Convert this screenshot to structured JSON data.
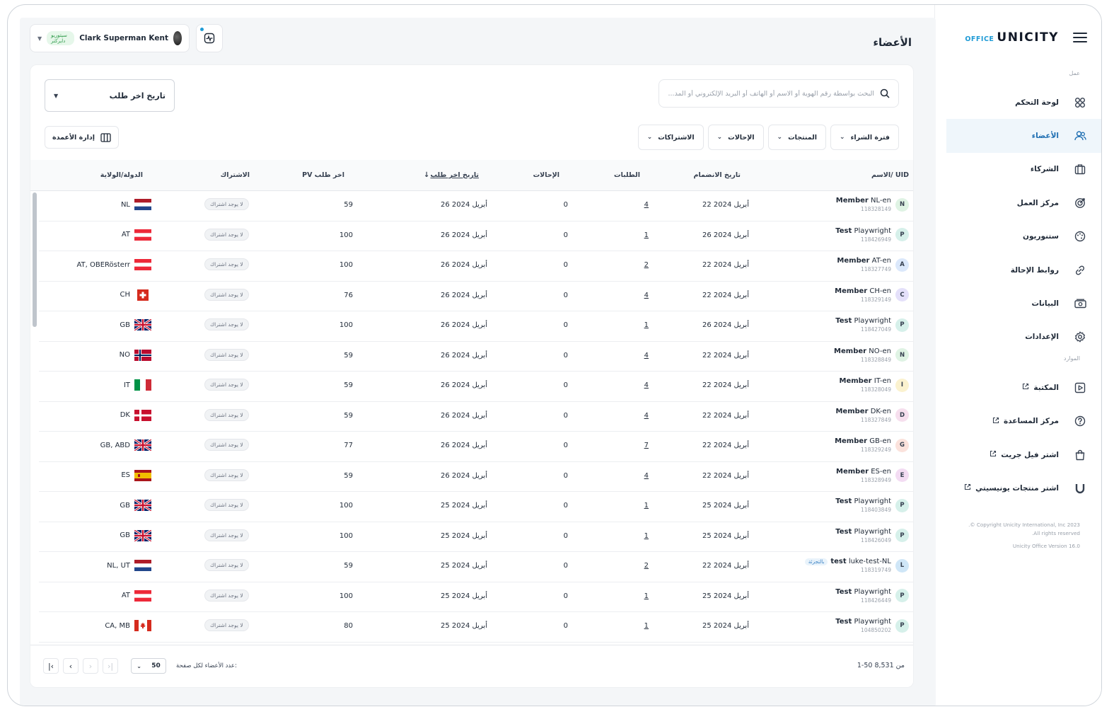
{
  "app": {
    "logo_office": "OFFICE",
    "logo_brand": "UNICITY"
  },
  "sidebar": {
    "section_work": "عمل",
    "section_resources": "الموارد",
    "items": [
      {
        "label": "لوحة التحكم",
        "icon": "dashboard-icon"
      },
      {
        "label": "الأعضاء",
        "icon": "members-icon",
        "active": true
      },
      {
        "label": "الشركاء",
        "icon": "briefcase-icon"
      },
      {
        "label": "مركز العمل",
        "icon": "target-icon"
      },
      {
        "label": "ستنوريون",
        "icon": "palette-icon"
      },
      {
        "label": "روابط الإحالة",
        "icon": "link-icon"
      },
      {
        "label": "البيانات",
        "icon": "money-icon"
      },
      {
        "label": "الإعدادات",
        "icon": "gear-icon"
      }
    ],
    "resources": [
      {
        "label": "المكتبة",
        "icon": "play-icon",
        "external": true
      },
      {
        "label": "مركز المساعدة",
        "icon": "help-icon",
        "external": true
      },
      {
        "label": "اشتر فيل جريت",
        "icon": "bag-icon",
        "external": true
      },
      {
        "label": "اشتر منتجات يونيسيتي",
        "icon": "unicity-u-icon",
        "external": true
      }
    ],
    "copyright_1": "Copyright Unicity International, Inc 2023 ©.",
    "copyright_2": "All rights reserved.",
    "version": "Unicity Office Version 16.0"
  },
  "header": {
    "title": "الأعضاء",
    "user_name": "Clark Superman Kent",
    "user_rank": "سيتوريو دايركتر"
  },
  "toolbar": {
    "search_placeholder": "البحث بواسطة رقم الهوية أو الاسم أو الهاتف أو البريد الإلكتروني أو المد...",
    "sort_label": "تاريخ اخر طلب",
    "filters": [
      "فترة الشراء",
      "المنتجات",
      "الإحالات",
      "الاشتراكات"
    ],
    "manage_columns": "إدارة الأعمدة"
  },
  "table": {
    "headers": {
      "name": "الاسم/ UID",
      "joined": "تاريخ الانضمام",
      "orders": "الطلبات",
      "referrals": "الإحالات",
      "last_order": "تاريخ اخر طلب",
      "pv": "PV اخر طلب",
      "subscription": "الاشتراك",
      "country": "الدولة/الولاية"
    },
    "no_subscription": "لا يوجد اشتراك",
    "retail_badge": "بالتجزئة",
    "rows": [
      {
        "initial": "N",
        "bold": "Member",
        "rest": "NL-en",
        "uid": "118328149",
        "joined": "22 أبريل 2024",
        "orders": "4",
        "referrals": "0",
        "last": "26 أبريل 2024",
        "pv": "59",
        "country": "NL",
        "flag": "nl",
        "av": "#dff3e4"
      },
      {
        "initial": "P",
        "bold": "Test",
        "rest": "Playwright",
        "uid": "118426949",
        "joined": "26 أبريل 2024",
        "orders": "1",
        "referrals": "0",
        "last": "26 أبريل 2024",
        "pv": "100",
        "country": "AT",
        "flag": "at",
        "av": "#d6f0ea"
      },
      {
        "initial": "A",
        "bold": "Member",
        "rest": "AT-en",
        "uid": "118327749",
        "joined": "22 أبريل 2024",
        "orders": "2",
        "referrals": "0",
        "last": "26 أبريل 2024",
        "pv": "100",
        "country": "AT, OBERösterr",
        "flag": "at",
        "av": "#dbe8fb"
      },
      {
        "initial": "C",
        "bold": "Member",
        "rest": "CH-en",
        "uid": "118329149",
        "joined": "22 أبريل 2024",
        "orders": "4",
        "referrals": "0",
        "last": "26 أبريل 2024",
        "pv": "76",
        "country": "CH",
        "flag": "ch",
        "av": "#e4e0fa"
      },
      {
        "initial": "P",
        "bold": "Test",
        "rest": "Playwright",
        "uid": "118427049",
        "joined": "26 أبريل 2024",
        "orders": "1",
        "referrals": "0",
        "last": "26 أبريل 2024",
        "pv": "100",
        "country": "GB",
        "flag": "gb",
        "av": "#d6f0ea"
      },
      {
        "initial": "N",
        "bold": "Member",
        "rest": "NO-en",
        "uid": "118328849",
        "joined": "22 أبريل 2024",
        "orders": "4",
        "referrals": "0",
        "last": "26 أبريل 2024",
        "pv": "59",
        "country": "NO",
        "flag": "no",
        "av": "#dff3e4"
      },
      {
        "initial": "I",
        "bold": "Member",
        "rest": "IT-en",
        "uid": "118328049",
        "joined": "22 أبريل 2024",
        "orders": "4",
        "referrals": "0",
        "last": "26 أبريل 2024",
        "pv": "59",
        "country": "IT",
        "flag": "it",
        "av": "#fbf2cf"
      },
      {
        "initial": "D",
        "bold": "Member",
        "rest": "DK-en",
        "uid": "118327849",
        "joined": "22 أبريل 2024",
        "orders": "4",
        "referrals": "0",
        "last": "26 أبريل 2024",
        "pv": "59",
        "country": "DK",
        "flag": "dk",
        "av": "#f6dfee"
      },
      {
        "initial": "G",
        "bold": "Member",
        "rest": "GB-en",
        "uid": "118329249",
        "joined": "22 أبريل 2024",
        "orders": "7",
        "referrals": "0",
        "last": "26 أبريل 2024",
        "pv": "77",
        "country": "GB, ABD",
        "flag": "gb",
        "av": "#fbe2dc"
      },
      {
        "initial": "E",
        "bold": "Member",
        "rest": "ES-en",
        "uid": "118328949",
        "joined": "22 أبريل 2024",
        "orders": "4",
        "referrals": "0",
        "last": "26 أبريل 2024",
        "pv": "59",
        "country": "ES",
        "flag": "es",
        "av": "#f3dcf3"
      },
      {
        "initial": "P",
        "bold": "Test",
        "rest": "Playwright",
        "uid": "118403849",
        "joined": "25 أبريل 2024",
        "orders": "1",
        "referrals": "0",
        "last": "25 أبريل 2024",
        "pv": "100",
        "country": "GB",
        "flag": "gb",
        "av": "#d6f0ea"
      },
      {
        "initial": "P",
        "bold": "Test",
        "rest": "Playwright",
        "uid": "118426049",
        "joined": "25 أبريل 2024",
        "orders": "1",
        "referrals": "0",
        "last": "25 أبريل 2024",
        "pv": "100",
        "country": "GB",
        "flag": "gb",
        "av": "#d6f0ea"
      },
      {
        "initial": "L",
        "bold": "test",
        "rest": "luke-test-NL",
        "uid": "118319749",
        "joined": "22 أبريل 2024",
        "orders": "2",
        "referrals": "0",
        "last": "25 أبريل 2024",
        "pv": "59",
        "country": "NL, UT",
        "flag": "nl",
        "av": "#cfe6f7",
        "retail": true
      },
      {
        "initial": "P",
        "bold": "Test",
        "rest": "Playwright",
        "uid": "118426449",
        "joined": "25 أبريل 2024",
        "orders": "1",
        "referrals": "0",
        "last": "25 أبريل 2024",
        "pv": "100",
        "country": "AT",
        "flag": "at",
        "av": "#d6f0ea"
      },
      {
        "initial": "P",
        "bold": "Test",
        "rest": "Playwright",
        "uid": "104850202",
        "joined": "25 أبريل 2024",
        "orders": "1",
        "referrals": "0",
        "last": "25 أبريل 2024",
        "pv": "80",
        "country": "CA, MB",
        "flag": "ca",
        "av": "#d6f0ea"
      }
    ]
  },
  "pagination": {
    "range": "1-50 من 8,531",
    "per_page_label": "عدد الأعضاء لكل صفحة:",
    "per_page_value": "50"
  }
}
